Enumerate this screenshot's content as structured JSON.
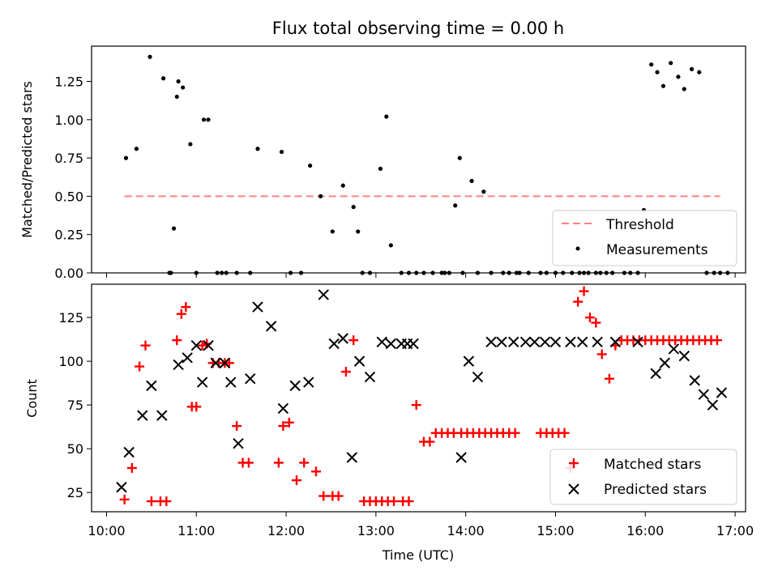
{
  "figure": {
    "title": "Flux total observing time = 0.00 h",
    "xlabel": "Time (UTC)"
  },
  "chart_data": [
    {
      "type": "scatter",
      "ylabel": "Matched/Predicted stars",
      "xlim": [
        "09:50",
        "17:07"
      ],
      "ylim": [
        0,
        1.48
      ],
      "yticks": [
        "0.00",
        "0.25",
        "0.50",
        "0.75",
        "1.00",
        "1.25"
      ],
      "ytick_values": [
        0,
        0.25,
        0.5,
        0.75,
        1.0,
        1.25
      ],
      "legend_position": "bottom-right",
      "threshold": {
        "name": "Threshold",
        "value": 0.5,
        "x_start": "10:12",
        "x_end": "16:50",
        "color": "#ff8080"
      },
      "series": [
        {
          "name": "Measurements",
          "color": "#000000",
          "marker": "dot",
          "x": [
            "10:13",
            "10:20",
            "10:29",
            "10:38",
            "10:45",
            "10:42",
            "10:43",
            "10:47",
            "10:48",
            "10:51",
            "10:56",
            "11:00",
            "11:05",
            "11:08",
            "11:14",
            "11:17",
            "11:20",
            "11:27",
            "11:36",
            "11:41",
            "11:57",
            "12:03",
            "12:10",
            "12:16",
            "12:23",
            "12:31",
            "12:38",
            "12:45",
            "12:48",
            "12:51",
            "12:56",
            "13:03",
            "13:07",
            "13:10",
            "13:17",
            "13:22",
            "13:27",
            "13:32",
            "13:38",
            "13:44",
            "13:46",
            "13:49",
            "13:53",
            "13:56",
            "13:58",
            "14:04",
            "14:08",
            "14:12",
            "14:17",
            "14:25",
            "14:29",
            "14:34",
            "14:36",
            "14:42",
            "14:50",
            "14:54",
            "15:00",
            "15:05",
            "15:11",
            "15:16",
            "15:19",
            "15:22",
            "15:27",
            "15:30",
            "15:34",
            "15:38",
            "15:46",
            "15:50",
            "15:55",
            "15:59",
            "16:04",
            "16:08",
            "16:12",
            "16:17",
            "16:22",
            "16:26",
            "16:31",
            "16:36",
            "16:41",
            "16:46",
            "16:50",
            "16:55"
          ],
          "y": [
            0.75,
            0.81,
            1.41,
            1.27,
            0.29,
            0,
            0,
            1.15,
            1.25,
            1.21,
            0.84,
            0,
            1.0,
            1.0,
            0,
            0,
            0,
            0,
            0,
            0.81,
            0.79,
            0,
            0,
            0.7,
            0.5,
            0.27,
            0.57,
            0.43,
            0.27,
            0,
            0,
            0.68,
            1.02,
            0.18,
            0,
            0,
            0,
            0,
            0,
            0,
            0,
            0,
            0.44,
            0.75,
            0,
            0.6,
            0,
            0.53,
            0,
            0,
            0,
            0,
            0,
            0,
            0,
            0,
            0,
            0,
            0,
            0,
            0,
            0,
            0,
            0,
            0,
            0,
            0,
            0,
            0,
            0.41,
            1.36,
            1.31,
            1.22,
            1.37,
            1.28,
            1.2,
            1.33,
            1.31,
            0,
            0,
            0,
            0
          ]
        }
      ]
    },
    {
      "type": "scatter",
      "ylabel": "Count",
      "xlim": [
        "09:50",
        "17:07"
      ],
      "ylim": [
        14,
        144
      ],
      "yticks": [
        "25",
        "50",
        "75",
        "100",
        "125"
      ],
      "ytick_values": [
        25,
        50,
        75,
        100,
        125
      ],
      "xticks": [
        "10:00",
        "11:00",
        "12:00",
        "13:00",
        "14:00",
        "15:00",
        "16:00",
        "17:00"
      ],
      "legend_position": "bottom-right",
      "series": [
        {
          "name": "Matched stars",
          "color": "#ff0000",
          "marker": "plus",
          "x": [
            "10:12",
            "10:17",
            "10:22",
            "10:26",
            "10:30",
            "10:36",
            "10:40",
            "10:47",
            "10:50",
            "10:53",
            "10:57",
            "11:00",
            "11:04",
            "11:07",
            "11:11",
            "11:15",
            "11:19",
            "11:22",
            "11:27",
            "11:31",
            "11:35",
            "11:55",
            "11:58",
            "12:02",
            "12:07",
            "12:12",
            "12:20",
            "12:25",
            "12:31",
            "12:35",
            "12:40",
            "12:45",
            "12:52",
            "12:56",
            "13:00",
            "13:04",
            "13:08",
            "13:12",
            "13:18",
            "13:22",
            "13:27",
            "13:32",
            "13:36",
            "13:40",
            "13:44",
            "13:48",
            "13:52",
            "13:57",
            "14:01",
            "14:05",
            "14:09",
            "14:13",
            "14:17",
            "14:21",
            "14:25",
            "14:29",
            "14:33",
            "14:50",
            "14:54",
            "14:58",
            "15:02",
            "15:06",
            "15:10",
            "15:15",
            "15:19",
            "15:23",
            "15:27",
            "15:31",
            "15:36",
            "15:40",
            "15:44",
            "15:48",
            "15:52",
            "15:56",
            "16:00",
            "16:04",
            "16:08",
            "16:12",
            "16:16",
            "16:20",
            "16:24",
            "16:28",
            "16:32",
            "16:36",
            "16:40",
            "16:44",
            "16:48"
          ],
          "y": [
            21,
            39,
            97,
            109,
            20,
            20,
            20,
            112,
            127,
            131,
            74,
            74,
            109,
            110,
            99,
            99,
            99,
            99,
            63,
            42,
            42,
            42,
            63,
            65,
            32,
            42,
            37,
            23,
            23,
            23,
            94,
            112,
            20,
            20,
            20,
            20,
            20,
            20,
            20,
            20,
            75,
            54,
            54,
            59,
            59,
            59,
            59,
            59,
            59,
            59,
            59,
            59,
            59,
            59,
            59,
            59,
            59,
            59,
            59,
            59,
            59,
            59,
            39,
            134,
            140,
            125,
            122,
            104,
            90,
            109,
            112,
            112,
            112,
            112,
            112,
            112,
            112,
            112,
            112,
            112,
            112,
            112,
            112,
            112,
            112,
            112,
            112
          ]
        },
        {
          "name": "Predicted stars",
          "color": "#000000",
          "marker": "x",
          "x": [
            "10:10",
            "10:15",
            "10:24",
            "10:30",
            "10:37",
            "10:48",
            "10:54",
            "11:00",
            "11:04",
            "11:08",
            "11:13",
            "11:19",
            "11:23",
            "11:28",
            "11:36",
            "11:41",
            "11:50",
            "11:58",
            "12:06",
            "12:15",
            "12:25",
            "12:32",
            "12:38",
            "12:44",
            "12:49",
            "12:56",
            "13:04",
            "13:10",
            "13:17",
            "13:21",
            "13:25",
            "13:57",
            "14:02",
            "14:08",
            "14:17",
            "14:24",
            "14:32",
            "14:40",
            "14:46",
            "14:53",
            "15:00",
            "15:10",
            "15:18",
            "15:28",
            "15:40",
            "15:55",
            "16:07",
            "16:13",
            "16:19",
            "16:26",
            "16:33",
            "16:39",
            "16:45",
            "16:51"
          ],
          "y": [
            28,
            48,
            69,
            86,
            69,
            98,
            102,
            109,
            88,
            109,
            99,
            99,
            88,
            53,
            90,
            131,
            120,
            73,
            86,
            88,
            138,
            110,
            113,
            45,
            100,
            91,
            111,
            110,
            110,
            110,
            110,
            45,
            100,
            91,
            111,
            111,
            111,
            111,
            111,
            111,
            111,
            111,
            111,
            111,
            111,
            111,
            93,
            99,
            107,
            103,
            89,
            81,
            75,
            82
          ]
        }
      ]
    }
  ]
}
